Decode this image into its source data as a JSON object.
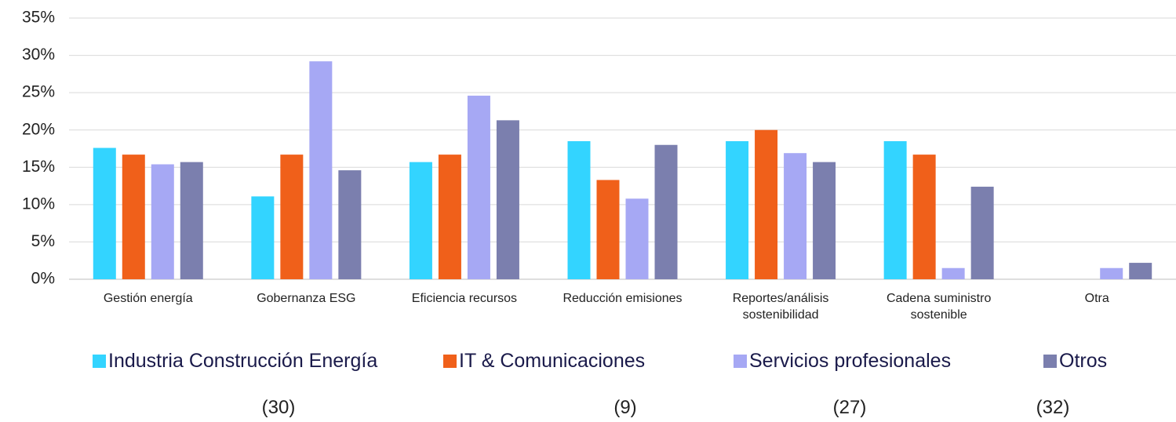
{
  "chart_data": {
    "type": "bar",
    "categories": [
      "Gestión energía",
      "Gobernanza ESG",
      "Eficiencia recursos",
      "Reducción emisiones",
      "Reportes/análisis sostenibilidad",
      "Cadena suministro sostenible",
      "Otra"
    ],
    "series": [
      {
        "name": "Industria Construcción Energía",
        "color": "#33d4ff",
        "values": [
          17.6,
          11.1,
          15.7,
          18.5,
          18.5,
          18.5,
          0
        ]
      },
      {
        "name": "IT & Comunicaciones",
        "color": "#f0601a",
        "values": [
          16.7,
          16.7,
          16.7,
          13.3,
          20.0,
          16.7,
          0
        ]
      },
      {
        "name": "Servicios profesionales",
        "color": "#a6a8f4",
        "values": [
          15.4,
          29.2,
          24.6,
          10.8,
          16.9,
          1.5,
          1.5
        ]
      },
      {
        "name": "Otros",
        "color": "#7b7fae",
        "values": [
          15.7,
          14.6,
          21.3,
          18.0,
          15.7,
          12.4,
          2.2
        ]
      }
    ],
    "ylim": [
      0,
      35
    ],
    "yticks": [
      {
        "value": 0,
        "label": "0%"
      },
      {
        "value": 5,
        "label": "5%"
      },
      {
        "value": 10,
        "label": "10%"
      },
      {
        "value": 15,
        "label": "15%"
      },
      {
        "value": 20,
        "label": "20%"
      },
      {
        "value": 25,
        "label": "25%"
      },
      {
        "value": 30,
        "label": "30%"
      },
      {
        "value": 35,
        "label": "35%"
      }
    ],
    "grid": true,
    "annotations": [
      "(30)",
      "(9)",
      "(27)",
      "(32)"
    ]
  }
}
